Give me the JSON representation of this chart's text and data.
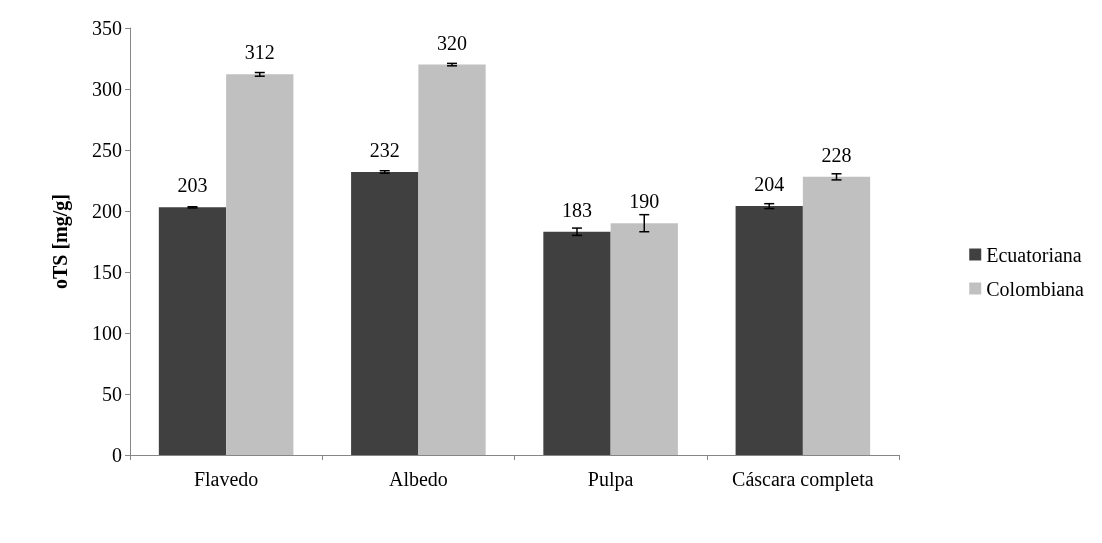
{
  "chart_data": {
    "type": "bar",
    "ylabel": "oTS [mg/g]",
    "categories": [
      "Flavedo",
      "Albedo",
      "Pulpa",
      "Cáscara completa"
    ],
    "series": [
      {
        "name": "Ecuatoriana",
        "color": "#404040",
        "values": [
          203,
          232,
          183,
          204
        ],
        "errors": [
          0.5,
          1,
          3,
          2
        ]
      },
      {
        "name": "Colombiana",
        "color": "#c0c0c0",
        "values": [
          312,
          320,
          190,
          228
        ],
        "errors": [
          1.5,
          1,
          7,
          2.5
        ]
      }
    ],
    "ylim": [
      0,
      350
    ],
    "yticks": [
      0,
      50,
      100,
      150,
      200,
      250,
      300,
      350
    ],
    "grid": false,
    "legend": "right",
    "data_labels": true
  }
}
